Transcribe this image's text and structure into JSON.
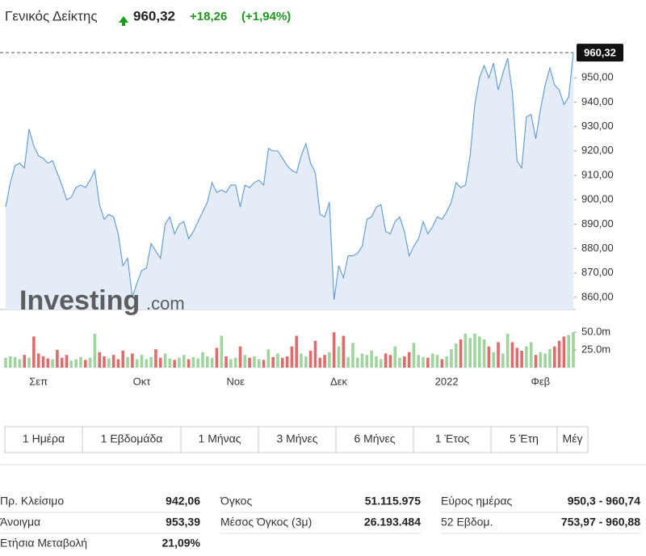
{
  "header": {
    "title": "Γενικός Δείκτης",
    "price": "960,32",
    "change": "+18,26",
    "change_pct": "(+1,94%)"
  },
  "watermark": [
    "Investing",
    ".com"
  ],
  "chart_data": {
    "type": "line",
    "categories": [
      null,
      null,
      null,
      null,
      null,
      null,
      null,
      "Σεπ",
      null,
      null,
      null,
      null,
      null,
      null,
      null,
      null,
      null,
      null,
      null,
      null,
      null,
      null,
      null,
      null,
      null,
      null,
      null,
      null,
      null,
      "Οκτ",
      null,
      null,
      null,
      null,
      null,
      null,
      null,
      null,
      null,
      null,
      null,
      null,
      null,
      null,
      null,
      null,
      null,
      null,
      null,
      "Νοε",
      null,
      null,
      null,
      null,
      null,
      null,
      null,
      null,
      null,
      null,
      null,
      null,
      null,
      null,
      null,
      null,
      null,
      null,
      null,
      null,
      null,
      "Δεκ",
      null,
      null,
      null,
      null,
      null,
      null,
      null,
      null,
      null,
      null,
      null,
      null,
      null,
      null,
      null,
      null,
      null,
      null,
      null,
      null,
      null,
      null,
      "2022",
      null,
      null,
      null,
      null,
      null,
      null,
      null,
      null,
      null,
      null,
      null,
      null,
      null,
      null,
      null,
      null,
      null,
      null,
      null,
      "Φεβ",
      null,
      null,
      null,
      null,
      null,
      null,
      null
    ],
    "series": [
      {
        "name": "Γενικός Δείκτης",
        "color": "#6a9fd4",
        "fill": "#e4edf7",
        "values": [
          897,
          907,
          914,
          915,
          913,
          929,
          922,
          918,
          917,
          915,
          916,
          911,
          906,
          900,
          901,
          905,
          906,
          905,
          908,
          912,
          898,
          892,
          894,
          893,
          886,
          873,
          876,
          860,
          866,
          871,
          872,
          882,
          879,
          876,
          890,
          893,
          886,
          890,
          891,
          884,
          887,
          891,
          895,
          899,
          907,
          903,
          904,
          903,
          906,
          906,
          897,
          906,
          905,
          907,
          908,
          906,
          921,
          920,
          920,
          917,
          914,
          912,
          911,
          918,
          923,
          915,
          911,
          894,
          893,
          899,
          859,
          873,
          868,
          877,
          877,
          878,
          881,
          892,
          893,
          897,
          898,
          887,
          886,
          891,
          893,
          887,
          877,
          881,
          884,
          891,
          886,
          889,
          893,
          892,
          895,
          899,
          907,
          905,
          906,
          918,
          939,
          950,
          955,
          950,
          956,
          945,
          952,
          958,
          944,
          916,
          913,
          934,
          935,
          925,
          937,
          947,
          954,
          947,
          945,
          939,
          942.06,
          960.32
        ]
      },
      {
        "name": "Όγκος",
        "type": "bar",
        "axis": "y2",
        "up_color": "#9fd49f",
        "down_color": "#e06b6b",
        "values": [
          14,
          16,
          15,
          12,
          18,
          14,
          44,
          20,
          16,
          13,
          12,
          25,
          14,
          18,
          10,
          12,
          15,
          11,
          14,
          48,
          22,
          16,
          13,
          18,
          12,
          24,
          15,
          20,
          12,
          18,
          12,
          15,
          26,
          14,
          20,
          13,
          11,
          14,
          18,
          12,
          15,
          13,
          22,
          16,
          14,
          28,
          45,
          16,
          12,
          14,
          30,
          18,
          14,
          16,
          12,
          11,
          26,
          15,
          20,
          14,
          16,
          30,
          45,
          20,
          16,
          24,
          38,
          14,
          18,
          22,
          50,
          30,
          45,
          15,
          35,
          14,
          20,
          18,
          24,
          16,
          12,
          20,
          18,
          30,
          14,
          16,
          22,
          35,
          18,
          15,
          14,
          20,
          18,
          12,
          16,
          26,
          34,
          40,
          48,
          42,
          48,
          44,
          40,
          30,
          22,
          36,
          20,
          48,
          36,
          28,
          24,
          30,
          36,
          18,
          22,
          20,
          26,
          30,
          38,
          44,
          46,
          50
        ]
      }
    ],
    "ylim": [
      855,
      962
    ],
    "yticks": [
      {
        "value": 860,
        "label": "860,00"
      },
      {
        "value": 870,
        "label": "870,00"
      },
      {
        "value": 880,
        "label": "880,00"
      },
      {
        "value": 890,
        "label": "890,00"
      },
      {
        "value": 900,
        "label": "900,00"
      },
      {
        "value": 910,
        "label": "910,00"
      },
      {
        "value": 920,
        "label": "920,00"
      },
      {
        "value": 930,
        "label": "930,00"
      },
      {
        "value": 940,
        "label": "940,00"
      },
      {
        "value": 950,
        "label": "950,00"
      }
    ],
    "y2lim": [
      0,
      57
    ],
    "y2ticks": [
      {
        "value": 25,
        "label": "25.0m"
      },
      {
        "value": 50,
        "label": "50.0m"
      }
    ],
    "grid": false
  },
  "buttons": [
    "1 Ημέρα",
    "1 Εβδομάδα",
    "1 Μήνας",
    "3 Μήνες",
    "6 Μήνες",
    "1 Έτος",
    "5 Έτη",
    "Μέγ"
  ],
  "stats": [
    [
      [
        "Πρ. Κλείσιμο",
        "942,06"
      ],
      [
        "Άνοιγμα",
        "953,39"
      ],
      [
        "Ετήσια Μεταβολή",
        "21,09%"
      ]
    ],
    [
      [
        "Όγκος",
        "51.115.975"
      ],
      [
        "Μέσος Όγκος (3μ)",
        "26.193.484"
      ]
    ],
    [
      [
        "Εύρος ημέρας",
        "950,3 - 960,74"
      ],
      [
        "52 Εβδομ.",
        "753,97 - 960,88"
      ]
    ]
  ]
}
